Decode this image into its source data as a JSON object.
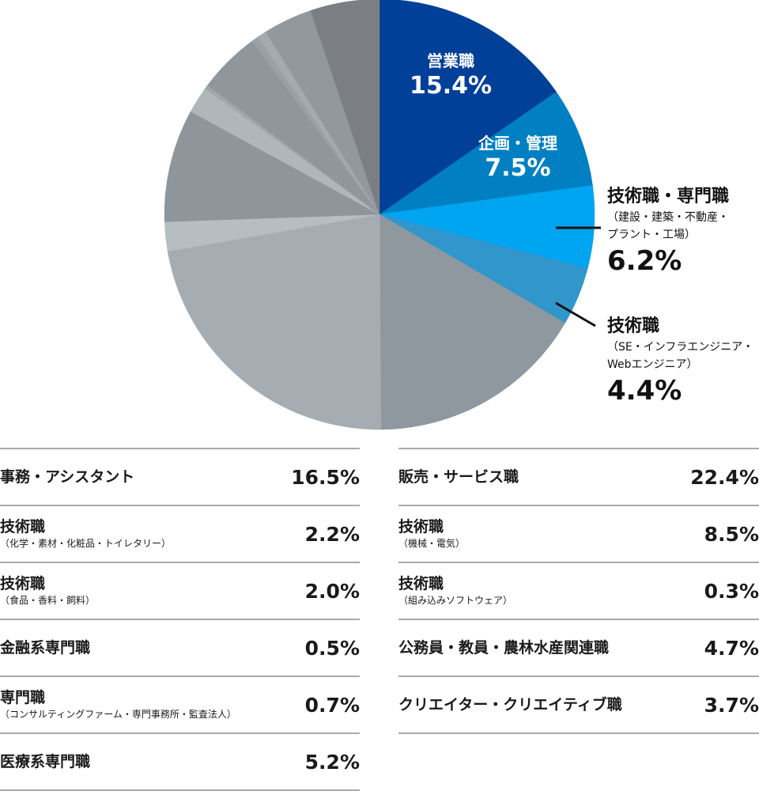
{
  "chart_data": {
    "type": "pie",
    "title": "",
    "unit": "%",
    "slices": [
      {
        "name": "営業職",
        "sub": "",
        "value": 15.4,
        "display": "15.4%",
        "color": "#004098",
        "label": "inside"
      },
      {
        "name": "企画・管理",
        "sub": "",
        "value": 7.5,
        "display": "7.5%",
        "color": "#0080c2",
        "label": "inside"
      },
      {
        "name": "技術職・専門職",
        "sub": "（建設・建築・不動産・プラント・工場）",
        "sub_lines": [
          "（建設・建築・不動産・",
          "プラント・工場）"
        ],
        "value": 6.2,
        "display": "6.2%",
        "color": "#00a5f2",
        "label": "outside"
      },
      {
        "name": "技術職",
        "sub": "（SE・インフラエンジニア・Webエンジニア）",
        "sub_lines": [
          "（SE・インフラエンジニア・",
          "Webエンジニア）"
        ],
        "value": 4.4,
        "display": "4.4%",
        "color": "#3196cc",
        "label": "outside"
      },
      {
        "name": "事務・アシスタント",
        "sub": "",
        "value": 16.5,
        "display": "16.5%",
        "color": "#8e989e",
        "label": "legend"
      },
      {
        "name": "販売・サービス職",
        "sub": "",
        "value": 22.4,
        "display": "22.4%",
        "color": "#a5adb3",
        "label": "legend"
      },
      {
        "name": "技術職",
        "sub": "（化学・素材・化粧品・トイレタリー）",
        "value": 2.2,
        "display": "2.2%",
        "color": "#b6bec1",
        "label": "legend"
      },
      {
        "name": "技術職",
        "sub": "（機械・電気）",
        "value": 8.5,
        "display": "8.5%",
        "color": "#8e969b",
        "label": "legend"
      },
      {
        "name": "技術職",
        "sub": "（食品・香料・飼料）",
        "value": 2.0,
        "display": "2.0%",
        "color": "#b0b7ba",
        "label": "legend"
      },
      {
        "name": "技術職",
        "sub": "（組み込みソフトウェア）",
        "value": 0.3,
        "display": "0.3%",
        "color": "#a0a8ae",
        "label": "legend"
      },
      {
        "name": "公務員・教員・農林水産関連職",
        "sub": "",
        "value": 4.7,
        "display": "4.7%",
        "color": "#90979c",
        "label": "legend"
      },
      {
        "name": "金融系専門職",
        "sub": "",
        "value": 0.5,
        "display": "0.5%",
        "color": "#9aa1a6",
        "label": "legend"
      },
      {
        "name": "専門職",
        "sub": "（コンサルティングファーム・専門事務所・監査法人）",
        "value": 0.7,
        "display": "0.7%",
        "color": "#a3abb1",
        "label": "legend"
      },
      {
        "name": "クリエイター・クリエイティブ職",
        "sub": "",
        "value": 3.7,
        "display": "3.7%",
        "color": "#93989c",
        "label": "legend"
      },
      {
        "name": "医療系専門職",
        "sub": "",
        "value": 5.2,
        "display": "5.2%",
        "color": "#7b7f84",
        "label": "legend"
      }
    ]
  },
  "legend": {
    "left": [
      {
        "name": "事務・アシスタント",
        "sub": "",
        "pct": "16.5%"
      },
      {
        "name": "技術職",
        "sub": "（化学・素材・化粧品・トイレタリー）",
        "pct": "2.2%"
      },
      {
        "name": "技術職",
        "sub": "（食品・香料・飼料）",
        "pct": "2.0%"
      },
      {
        "name": "金融系専門職",
        "sub": "",
        "pct": "0.5%"
      },
      {
        "name": "専門職",
        "sub": "（コンサルティングファーム・専門事務所・監査法人）",
        "pct": "0.7%"
      },
      {
        "name": "医療系専門職",
        "sub": "",
        "pct": "5.2%"
      }
    ],
    "right": [
      {
        "name": "販売・サービス職",
        "sub": "",
        "pct": "22.4%"
      },
      {
        "name": "技術職",
        "sub": "（機械・電気）",
        "pct": "8.5%"
      },
      {
        "name": "技術職",
        "sub": "（組み込みソフトウェア）",
        "pct": "0.3%"
      },
      {
        "name": "公務員・教員・農林水産関連職",
        "sub": "",
        "pct": "4.7%"
      },
      {
        "name": "クリエイター・クリエイティブ職",
        "sub": "",
        "pct": "3.7%"
      }
    ]
  }
}
